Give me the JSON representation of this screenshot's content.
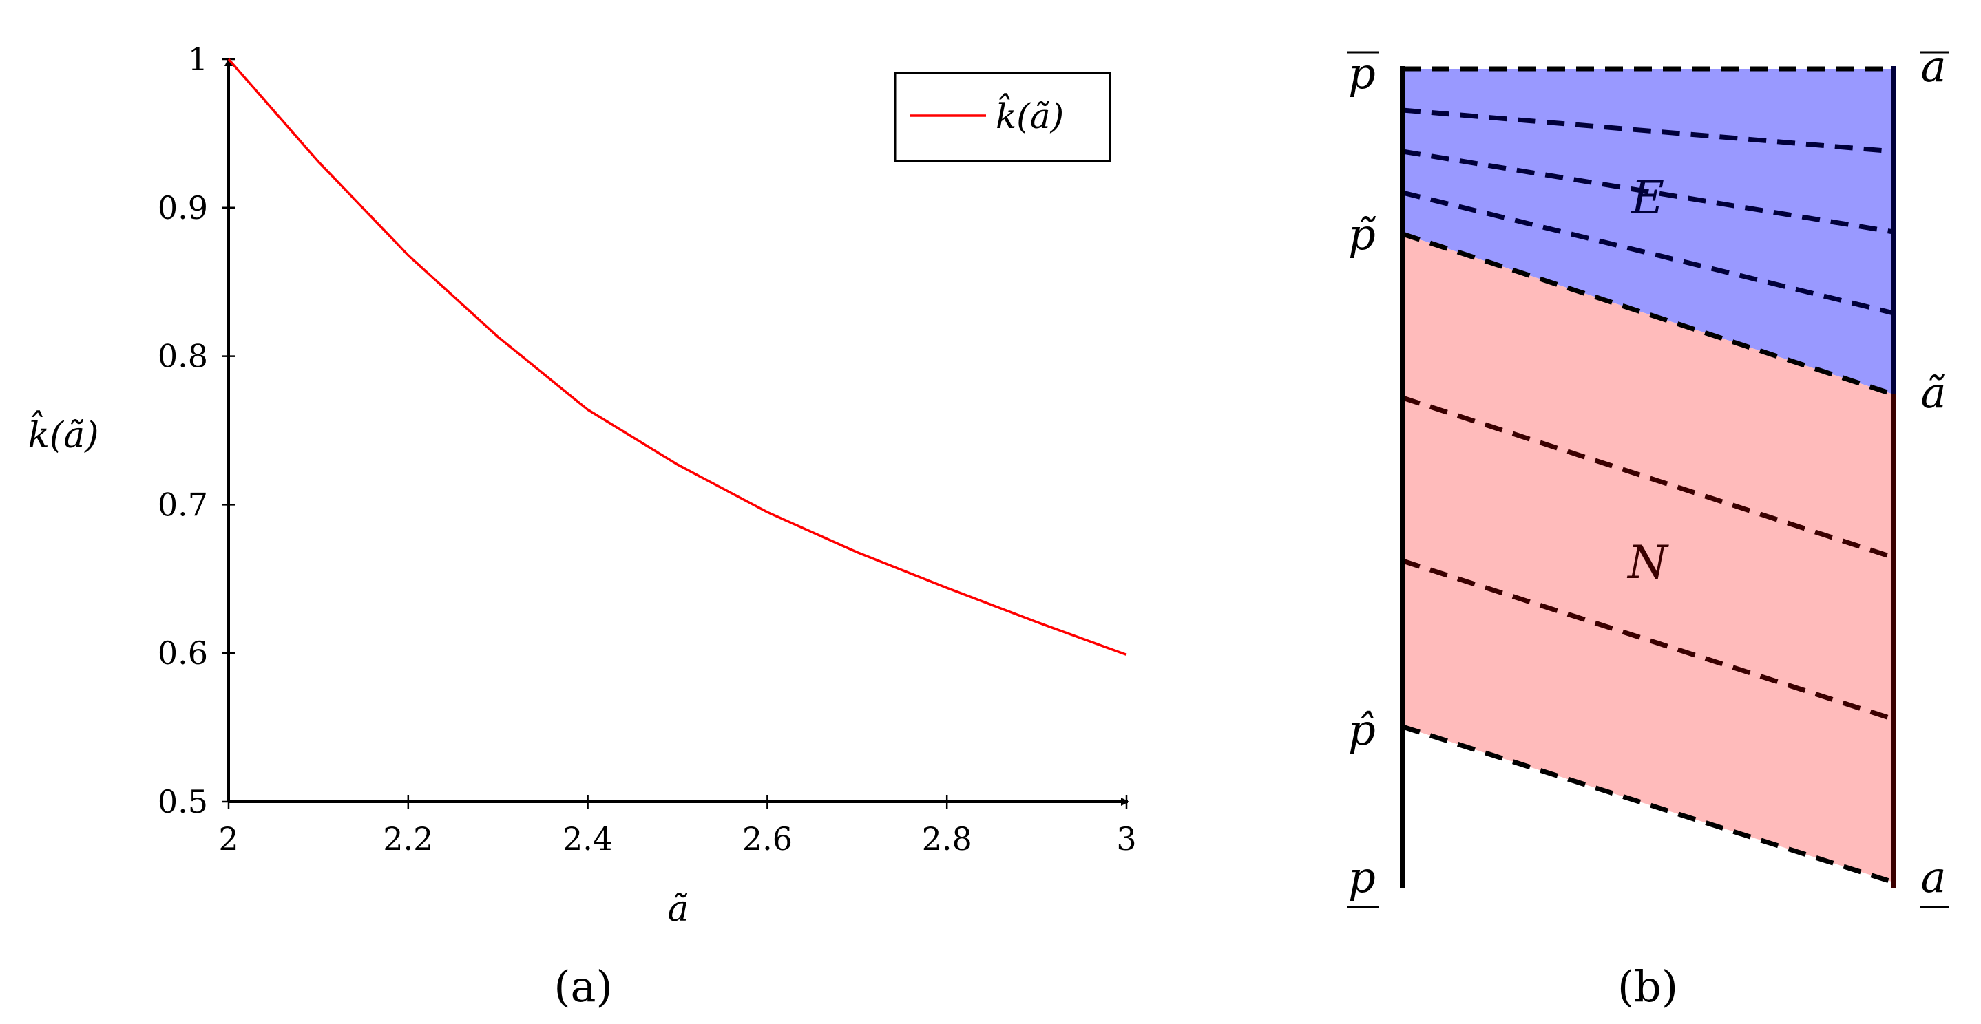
{
  "panel_a": {
    "caption": "(a)",
    "legend": "k̂(ã)"
  },
  "panel_b": {
    "caption": "(b)",
    "labels": {
      "p_bar": "p",
      "p_tilde": "p̃",
      "p_hat": "p̂",
      "p_under": "p",
      "a_bar": "a",
      "a_tilde": "ã",
      "a_under": "a"
    },
    "regions": {
      "upper": "E",
      "lower": "N"
    }
  },
  "colors": {
    "curve": "#ff0000",
    "region_E": "#9999ff",
    "region_N": "#ffbbbb",
    "dash_E": "#00003a",
    "dash_N": "#3a0000"
  },
  "chart_data": [
    {
      "type": "line",
      "title": "",
      "xlabel": "ã",
      "ylabel": "k̂(ã)",
      "xlim": [
        2,
        3
      ],
      "ylim": [
        0.5,
        1
      ],
      "xticks": [
        2,
        2.2,
        2.4,
        2.6,
        2.8,
        3
      ],
      "yticks": [
        0.5,
        0.6,
        0.7,
        0.8,
        0.9,
        1
      ],
      "xtick_labels": [
        "2",
        "2.2",
        "2.4",
        "2.6",
        "2.8",
        "3"
      ],
      "ytick_labels": [
        "0.5",
        "0.6",
        "0.7",
        "0.8",
        "0.9",
        "1"
      ],
      "grid": false,
      "legend_position": "top-right",
      "series": [
        {
          "name": "k̂(ã)",
          "x": [
            2.0,
            2.1,
            2.2,
            2.3,
            2.4,
            2.5,
            2.6,
            2.7,
            2.8,
            2.9,
            3.0
          ],
          "y": [
            1.0,
            0.931,
            0.868,
            0.813,
            0.764,
            0.727,
            0.695,
            0.668,
            0.644,
            0.621,
            0.599
          ]
        }
      ]
    },
    {
      "type": "diagram",
      "left_axis_ticks": [
        "p",
        "p̃",
        "p̂",
        "p"
      ],
      "right_axis_ticks": [
        "a",
        "ã",
        "a"
      ],
      "regions": [
        "E",
        "N"
      ]
    }
  ]
}
